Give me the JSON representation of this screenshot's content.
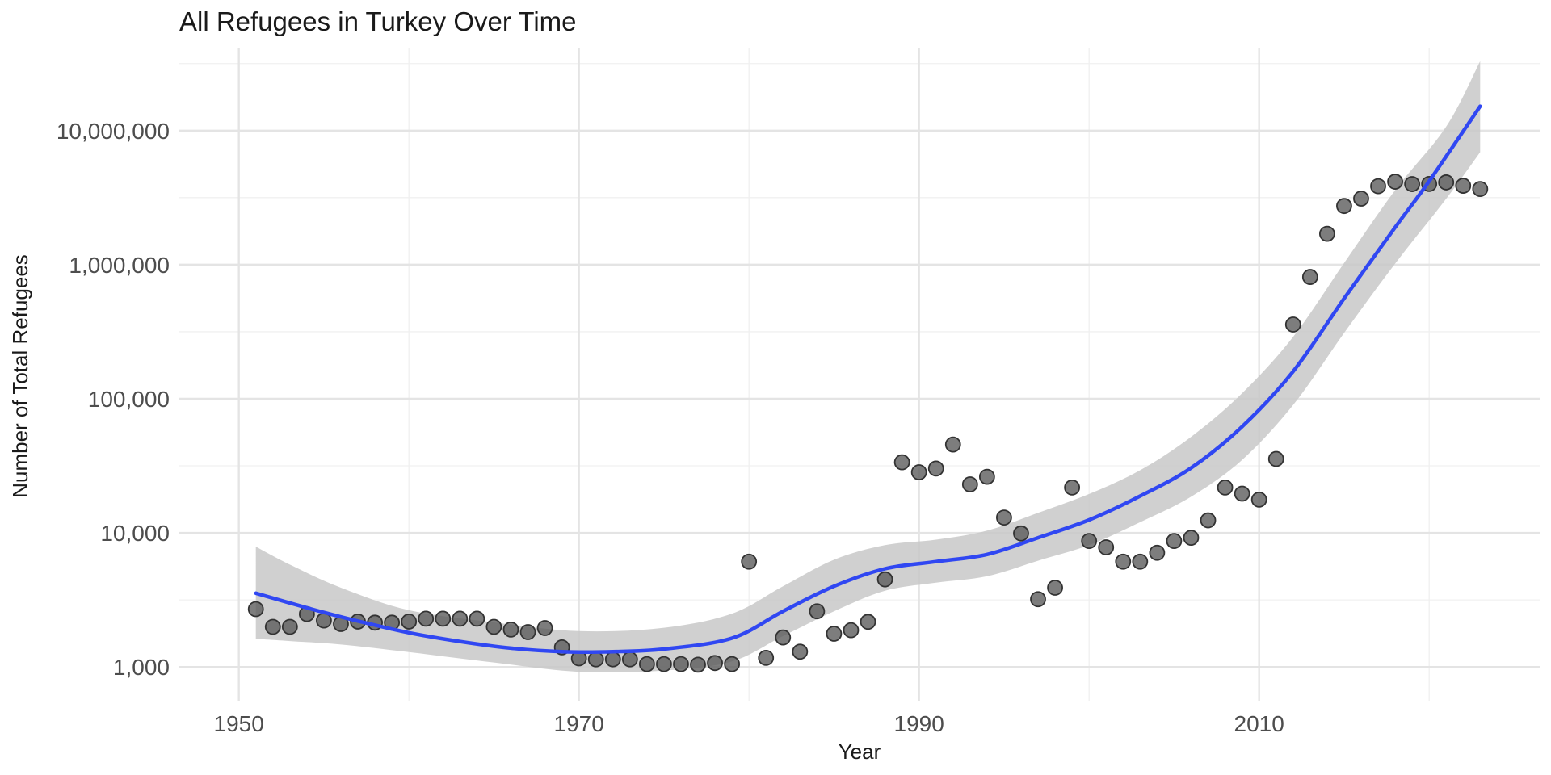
{
  "chart_data": {
    "type": "scatter",
    "title": "All Refugees in Turkey Over Time",
    "xlabel": "Year",
    "ylabel": "Number of Total Refugees",
    "x_scale": "linear",
    "y_scale": "log10",
    "xlim": [
      1946.5,
      2026.5
    ],
    "ylim": [
      560,
      41000000
    ],
    "x_ticks": [
      1950,
      1970,
      1990,
      2010
    ],
    "x_tick_labels": [
      "1950",
      "1970",
      "1990",
      "2010"
    ],
    "y_ticks": [
      1000,
      10000,
      100000,
      1000000,
      10000000
    ],
    "y_tick_labels": [
      "1,000",
      "10,000",
      "100,000",
      "1,000,000",
      "10,000,000"
    ],
    "grid": true,
    "legend": "none",
    "point_color": "#595959",
    "smooth_color": "#3047f2",
    "ribbon_color": "#c8c8c8",
    "series": [
      {
        "type": "scatter",
        "points": [
          [
            1951,
            2700
          ],
          [
            1952,
            1990
          ],
          [
            1953,
            1990
          ],
          [
            1954,
            2480
          ],
          [
            1955,
            2220
          ],
          [
            1956,
            2090
          ],
          [
            1957,
            2180
          ],
          [
            1958,
            2140
          ],
          [
            1959,
            2140
          ],
          [
            1960,
            2180
          ],
          [
            1961,
            2290
          ],
          [
            1962,
            2290
          ],
          [
            1963,
            2290
          ],
          [
            1964,
            2290
          ],
          [
            1965,
            1990
          ],
          [
            1966,
            1900
          ],
          [
            1967,
            1820
          ],
          [
            1968,
            1950
          ],
          [
            1969,
            1400
          ],
          [
            1970,
            1160
          ],
          [
            1971,
            1140
          ],
          [
            1972,
            1140
          ],
          [
            1973,
            1140
          ],
          [
            1974,
            1050
          ],
          [
            1975,
            1050
          ],
          [
            1976,
            1050
          ],
          [
            1977,
            1040
          ],
          [
            1978,
            1070
          ],
          [
            1979,
            1050
          ],
          [
            1980,
            6100
          ],
          [
            1981,
            1170
          ],
          [
            1982,
            1660
          ],
          [
            1983,
            1300
          ],
          [
            1984,
            2600
          ],
          [
            1985,
            1770
          ],
          [
            1986,
            1880
          ],
          [
            1987,
            2170
          ],
          [
            1988,
            4500
          ],
          [
            1989,
            33600
          ],
          [
            1990,
            28300
          ],
          [
            1991,
            30200
          ],
          [
            1992,
            45600
          ],
          [
            1993,
            23000
          ],
          [
            1994,
            26200
          ],
          [
            1995,
            13000
          ],
          [
            1996,
            9900
          ],
          [
            1997,
            3200
          ],
          [
            1998,
            3900
          ],
          [
            1999,
            21800
          ],
          [
            2000,
            8700
          ],
          [
            2001,
            7800
          ],
          [
            2002,
            6100
          ],
          [
            2003,
            6100
          ],
          [
            2004,
            7100
          ],
          [
            2005,
            8700
          ],
          [
            2006,
            9200
          ],
          [
            2007,
            12400
          ],
          [
            2008,
            21800
          ],
          [
            2009,
            19600
          ],
          [
            2010,
            17700
          ],
          [
            2011,
            35600
          ],
          [
            2012,
            358000
          ],
          [
            2013,
            810000
          ],
          [
            2014,
            1700000
          ],
          [
            2015,
            2740000
          ],
          [
            2016,
            3110000
          ],
          [
            2017,
            3850000
          ],
          [
            2018,
            4160000
          ],
          [
            2019,
            3990000
          ],
          [
            2020,
            4000000
          ],
          [
            2021,
            4110000
          ],
          [
            2022,
            3880000
          ],
          [
            2023,
            3670000
          ]
        ]
      },
      {
        "type": "smooth",
        "points": [
          [
            1951,
            3550
          ],
          [
            1953,
            3000
          ],
          [
            1955,
            2550
          ],
          [
            1957,
            2200
          ],
          [
            1960,
            1800
          ],
          [
            1963,
            1550
          ],
          [
            1966,
            1380
          ],
          [
            1969,
            1300
          ],
          [
            1972,
            1300
          ],
          [
            1975,
            1360
          ],
          [
            1979,
            1640
          ],
          [
            1982,
            2600
          ],
          [
            1985,
            4000
          ],
          [
            1988,
            5400
          ],
          [
            1991,
            6100
          ],
          [
            1994,
            6900
          ],
          [
            1997,
            9200
          ],
          [
            2000,
            12500
          ],
          [
            2003,
            18800
          ],
          [
            2006,
            30500
          ],
          [
            2009,
            62000
          ],
          [
            2012,
            160000
          ],
          [
            2015,
            560000
          ],
          [
            2018,
            1900000
          ],
          [
            2020,
            4200000
          ],
          [
            2023,
            15200000
          ]
        ]
      },
      {
        "type": "ribbon",
        "upper": [
          [
            1951,
            7900
          ],
          [
            1953,
            5800
          ],
          [
            1956,
            3900
          ],
          [
            1960,
            2650
          ],
          [
            1965,
            2150
          ],
          [
            1970,
            1850
          ],
          [
            1975,
            1960
          ],
          [
            1979,
            2500
          ],
          [
            1982,
            4000
          ],
          [
            1985,
            6300
          ],
          [
            1988,
            8100
          ],
          [
            1991,
            8900
          ],
          [
            1994,
            10400
          ],
          [
            1997,
            14100
          ],
          [
            2000,
            19500
          ],
          [
            2003,
            29300
          ],
          [
            2006,
            52000
          ],
          [
            2009,
            110000
          ],
          [
            2012,
            290000
          ],
          [
            2015,
            1030000
          ],
          [
            2018,
            3600000
          ],
          [
            2021,
            10700000
          ],
          [
            2023,
            33000000
          ]
        ],
        "lower": [
          [
            1951,
            1620
          ],
          [
            1953,
            1560
          ],
          [
            1956,
            1470
          ],
          [
            1960,
            1290
          ],
          [
            1965,
            1080
          ],
          [
            1970,
            920
          ],
          [
            1975,
            940
          ],
          [
            1979,
            1100
          ],
          [
            1982,
            1700
          ],
          [
            1985,
            2600
          ],
          [
            1988,
            3700
          ],
          [
            1991,
            4250
          ],
          [
            1994,
            4750
          ],
          [
            1997,
            6200
          ],
          [
            2000,
            8100
          ],
          [
            2003,
            12000
          ],
          [
            2006,
            18600
          ],
          [
            2009,
            35000
          ],
          [
            2012,
            90000
          ],
          [
            2015,
            310000
          ],
          [
            2018,
            1020000
          ],
          [
            2021,
            3100000
          ],
          [
            2023,
            6900000
          ]
        ]
      }
    ]
  }
}
